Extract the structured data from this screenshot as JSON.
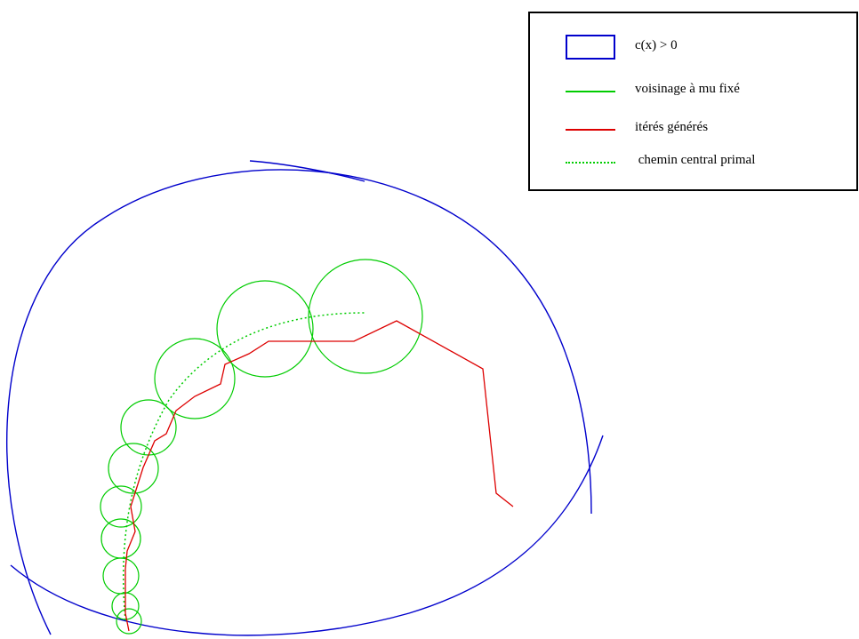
{
  "legend": {
    "items": [
      {
        "label": "c(x) > 0",
        "style": "rect",
        "color": "#0000cc"
      },
      {
        "label": "voisinage à mu fixé",
        "style": "line",
        "color": "#00cc00"
      },
      {
        "label": "itérés générés",
        "style": "line",
        "color": "#dd0000"
      },
      {
        "label": " chemin central primal",
        "style": "dotted",
        "color": "#00cc00"
      }
    ]
  },
  "colors": {
    "feasible_region": "#0000cc",
    "neighborhood": "#00cc00",
    "iterates": "#dd0000",
    "central_path": "#00cc00"
  }
}
